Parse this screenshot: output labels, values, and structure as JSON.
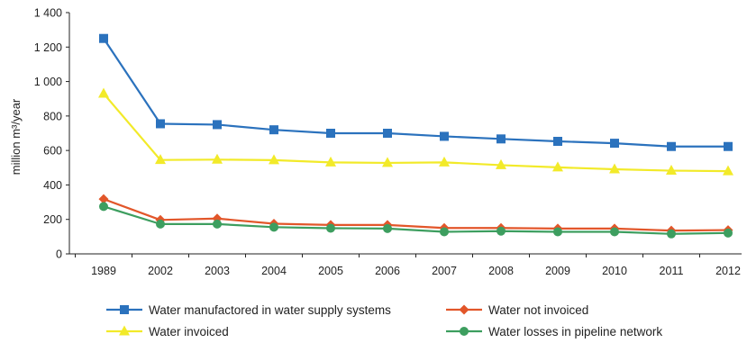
{
  "chart_data": {
    "type": "line",
    "ylabel": "million m³/year",
    "xlabel": "",
    "title": "",
    "ylim": [
      0,
      1400
    ],
    "yticks": [
      0,
      200,
      400,
      600,
      800,
      1000,
      1200,
      1400
    ],
    "ytick_labels": [
      "0",
      "200",
      "400",
      "600",
      "800",
      "1 000",
      "1 200",
      "1 400"
    ],
    "categories": [
      "1989",
      "2002",
      "2003",
      "2004",
      "2005",
      "2006",
      "2007",
      "2008",
      "2009",
      "2010",
      "2011",
      "2012"
    ],
    "grid": false,
    "legend_position": "bottom",
    "series": [
      {
        "name": "Water manufactored in water supply systems",
        "color": "#2b72bd",
        "marker": "square",
        "values": [
          1250,
          755,
          750,
          720,
          700,
          700,
          682,
          667,
          653,
          642,
          623,
          623
        ]
      },
      {
        "name": "Water not invoiced",
        "color": "#e2562a",
        "marker": "diamond",
        "values": [
          318,
          197,
          205,
          175,
          168,
          168,
          150,
          150,
          147,
          147,
          135,
          138
        ]
      },
      {
        "name": "Water invoiced",
        "color": "#f2ea29",
        "marker": "triangle",
        "values": [
          930,
          545,
          547,
          544,
          531,
          528,
          531,
          515,
          502,
          491,
          483,
          480
        ]
      },
      {
        "name": "Water losses in pipeline network",
        "color": "#3d9e5f",
        "marker": "circle",
        "values": [
          275,
          173,
          173,
          155,
          149,
          147,
          128,
          132,
          128,
          128,
          116,
          121
        ]
      }
    ]
  }
}
